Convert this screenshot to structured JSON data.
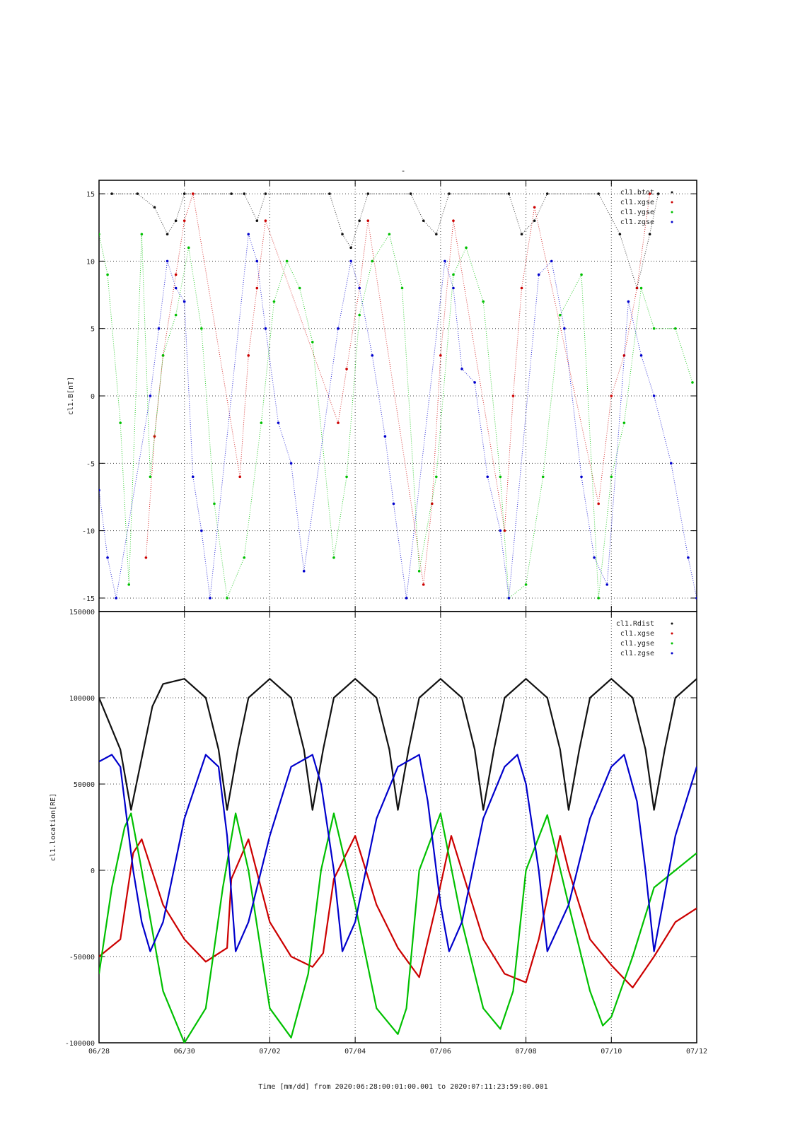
{
  "page_title": "-",
  "colors": {
    "black": "#111111",
    "red": "#cc0000",
    "green": "#00c000",
    "blue": "#0000cc",
    "grid": "#444444",
    "frame": "#000000"
  },
  "chart_data": [
    {
      "type": "scatter",
      "panel": "top",
      "title": "-",
      "ylabel": "cl1.B[nT]",
      "ylim": [
        -16,
        16
      ],
      "yticks": [
        -15,
        -10,
        -5,
        0,
        5,
        10,
        15
      ],
      "xlim": [
        "2020-06-28T00:01:00",
        "2020-07-11T23:59:00"
      ],
      "grid": true,
      "legend_placement": "top-right",
      "series": [
        {
          "name": "cl1.btot",
          "color": "#111111",
          "points": [
            [
              0.3,
              15.0
            ],
            [
              0.9,
              15.0
            ],
            [
              1.3,
              14.0
            ],
            [
              1.6,
              12.0
            ],
            [
              1.8,
              13.0
            ],
            [
              2.0,
              15.0
            ],
            [
              3.1,
              15.0
            ],
            [
              3.4,
              15.0
            ],
            [
              3.7,
              13.0
            ],
            [
              3.9,
              15.0
            ],
            [
              5.4,
              15.0
            ],
            [
              5.7,
              12.0
            ],
            [
              5.9,
              11.0
            ],
            [
              6.1,
              13.0
            ],
            [
              6.3,
              15.0
            ],
            [
              7.3,
              15.0
            ],
            [
              7.6,
              13.0
            ],
            [
              7.9,
              12.0
            ],
            [
              8.2,
              15.0
            ],
            [
              9.6,
              15.0
            ],
            [
              9.9,
              12.0
            ],
            [
              10.2,
              13.0
            ],
            [
              10.5,
              15.0
            ],
            [
              11.7,
              15.0
            ],
            [
              12.2,
              12.0
            ],
            [
              12.6,
              8.0
            ],
            [
              12.9,
              12.0
            ],
            [
              13.1,
              15.0
            ]
          ]
        },
        {
          "name": "cl1.xgse",
          "color": "#cc0000",
          "points": [
            [
              1.1,
              -12.0
            ],
            [
              1.3,
              -3.0
            ],
            [
              1.5,
              3.0
            ],
            [
              1.8,
              9.0
            ],
            [
              2.0,
              13.0
            ],
            [
              2.2,
              15.0
            ],
            [
              3.3,
              -6.0
            ],
            [
              3.5,
              3.0
            ],
            [
              3.7,
              8.0
            ],
            [
              3.9,
              13.0
            ],
            [
              5.6,
              -2.0
            ],
            [
              5.8,
              2.0
            ],
            [
              6.1,
              8.0
            ],
            [
              6.3,
              13.0
            ],
            [
              7.6,
              -14.0
            ],
            [
              7.8,
              -8.0
            ],
            [
              8.0,
              3.0
            ],
            [
              8.3,
              13.0
            ],
            [
              9.5,
              -10.0
            ],
            [
              9.7,
              0.0
            ],
            [
              9.9,
              8.0
            ],
            [
              10.2,
              14.0
            ],
            [
              11.7,
              -8.0
            ],
            [
              12.0,
              0.0
            ],
            [
              12.3,
              3.0
            ],
            [
              12.6,
              8.0
            ],
            [
              12.9,
              15.0
            ]
          ]
        },
        {
          "name": "cl1.ygse",
          "color": "#00c000",
          "points": [
            [
              0.0,
              12.0
            ],
            [
              0.2,
              9.0
            ],
            [
              0.5,
              -2.0
            ],
            [
              0.7,
              -14.0
            ],
            [
              1.0,
              12.0
            ],
            [
              1.2,
              -6.0
            ],
            [
              1.5,
              3.0
            ],
            [
              1.8,
              6.0
            ],
            [
              2.1,
              11.0
            ],
            [
              2.4,
              5.0
            ],
            [
              2.7,
              -8.0
            ],
            [
              3.0,
              -15.0
            ],
            [
              3.4,
              -12.0
            ],
            [
              3.8,
              -2.0
            ],
            [
              4.1,
              7.0
            ],
            [
              4.4,
              10.0
            ],
            [
              4.7,
              8.0
            ],
            [
              5.0,
              4.0
            ],
            [
              5.5,
              -12.0
            ],
            [
              5.8,
              -6.0
            ],
            [
              6.1,
              6.0
            ],
            [
              6.4,
              10.0
            ],
            [
              6.8,
              12.0
            ],
            [
              7.1,
              8.0
            ],
            [
              7.5,
              -13.0
            ],
            [
              7.9,
              -6.0
            ],
            [
              8.3,
              9.0
            ],
            [
              8.6,
              11.0
            ],
            [
              9.0,
              7.0
            ],
            [
              9.4,
              -6.0
            ],
            [
              9.6,
              -15.0
            ],
            [
              10.0,
              -14.0
            ],
            [
              10.4,
              -6.0
            ],
            [
              10.8,
              6.0
            ],
            [
              11.3,
              9.0
            ],
            [
              11.7,
              -15.0
            ],
            [
              12.0,
              -6.0
            ],
            [
              12.3,
              -2.0
            ],
            [
              12.7,
              8.0
            ],
            [
              13.0,
              5.0
            ],
            [
              13.5,
              5.0
            ],
            [
              13.9,
              1.0
            ]
          ]
        },
        {
          "name": "cl1.zgse",
          "color": "#0000cc",
          "points": [
            [
              0.0,
              -7.0
            ],
            [
              0.2,
              -12.0
            ],
            [
              0.4,
              -15.0
            ],
            [
              1.2,
              0.0
            ],
            [
              1.4,
              5.0
            ],
            [
              1.6,
              10.0
            ],
            [
              1.8,
              8.0
            ],
            [
              2.0,
              7.0
            ],
            [
              2.2,
              -6.0
            ],
            [
              2.4,
              -10.0
            ],
            [
              2.6,
              -15.0
            ],
            [
              3.5,
              12.0
            ],
            [
              3.7,
              10.0
            ],
            [
              3.9,
              5.0
            ],
            [
              4.2,
              -2.0
            ],
            [
              4.5,
              -5.0
            ],
            [
              4.8,
              -13.0
            ],
            [
              5.6,
              5.0
            ],
            [
              5.9,
              10.0
            ],
            [
              6.1,
              8.0
            ],
            [
              6.4,
              3.0
            ],
            [
              6.7,
              -3.0
            ],
            [
              6.9,
              -8.0
            ],
            [
              7.2,
              -15.0
            ],
            [
              8.1,
              10.0
            ],
            [
              8.3,
              8.0
            ],
            [
              8.5,
              2.0
            ],
            [
              8.8,
              1.0
            ],
            [
              9.1,
              -6.0
            ],
            [
              9.4,
              -10.0
            ],
            [
              9.6,
              -15.0
            ],
            [
              10.3,
              9.0
            ],
            [
              10.6,
              10.0
            ],
            [
              10.9,
              5.0
            ],
            [
              11.3,
              -6.0
            ],
            [
              11.6,
              -12.0
            ],
            [
              11.9,
              -14.0
            ],
            [
              12.4,
              7.0
            ],
            [
              12.7,
              3.0
            ],
            [
              13.0,
              0.0
            ],
            [
              13.4,
              -5.0
            ],
            [
              13.8,
              -12.0
            ],
            [
              14.0,
              -15.0
            ]
          ]
        }
      ]
    },
    {
      "type": "line",
      "panel": "bottom",
      "ylabel": "cl1.location[RE]",
      "xlabel": "Time [mm/dd]  from 2020:06:28:00:01:00.001  to  2020:07:11:23:59:00.001",
      "ylim": [
        -100000,
        150000
      ],
      "yticks": [
        -100000,
        -50000,
        0,
        50000,
        100000,
        150000
      ],
      "xticks": [
        "06/28",
        "06/30",
        "07/02",
        "07/04",
        "07/06",
        "07/08",
        "07/10",
        "07/12"
      ],
      "xtick_days": [
        0,
        2,
        4,
        6,
        8,
        10,
        12,
        14
      ],
      "grid": true,
      "legend_placement": "top-right",
      "series": [
        {
          "name": "cl1.Rdist",
          "color": "#111111",
          "x": [
            0.0,
            0.5,
            0.75,
            1.0,
            1.25,
            1.5,
            2.0,
            2.5,
            2.8,
            3.0,
            3.25,
            3.5,
            4.0,
            4.5,
            4.8,
            5.0,
            5.25,
            5.5,
            6.0,
            6.5,
            6.8,
            7.0,
            7.25,
            7.5,
            8.0,
            8.5,
            8.8,
            9.0,
            9.25,
            9.5,
            10.0,
            10.5,
            10.8,
            11.0,
            11.25,
            11.5,
            12.0,
            12.5,
            12.8,
            13.0,
            13.25,
            13.5,
            14.0
          ],
          "values": [
            100000,
            70000,
            35000,
            65000,
            95000,
            108000,
            111000,
            100000,
            70000,
            35000,
            70000,
            100000,
            111000,
            100000,
            70000,
            35000,
            70000,
            100000,
            111000,
            100000,
            70000,
            35000,
            70000,
            100000,
            111000,
            100000,
            70000,
            35000,
            70000,
            100000,
            111000,
            100000,
            70000,
            35000,
            70000,
            100000,
            111000,
            100000,
            70000,
            35000,
            70000,
            100000,
            111000
          ]
        },
        {
          "name": "cl1.xgse",
          "color": "#cc0000",
          "x": [
            0.0,
            0.5,
            0.8,
            1.0,
            1.5,
            2.0,
            2.5,
            3.0,
            3.1,
            3.5,
            4.0,
            4.5,
            5.0,
            5.25,
            5.5,
            6.0,
            6.5,
            7.0,
            7.5,
            7.9,
            8.25,
            8.5,
            9.0,
            9.5,
            10.0,
            10.3,
            10.8,
            11.0,
            11.5,
            12.0,
            12.5,
            13.0,
            13.5,
            14.0
          ],
          "values": [
            -50000,
            -40000,
            10000,
            18000,
            -20000,
            -40000,
            -53000,
            -45000,
            -5000,
            18000,
            -30000,
            -50000,
            -56000,
            -48000,
            -5000,
            20000,
            -20000,
            -45000,
            -62000,
            -20000,
            20000,
            0,
            -40000,
            -60000,
            -65000,
            -40000,
            20000,
            0,
            -40000,
            -55000,
            -68000,
            -50000,
            -30000,
            -22000
          ]
        },
        {
          "name": "cl1.ygse",
          "color": "#00c000",
          "x": [
            0.0,
            0.3,
            0.6,
            0.75,
            1.0,
            1.5,
            2.0,
            2.5,
            2.9,
            3.2,
            3.5,
            4.0,
            4.5,
            4.9,
            5.2,
            5.5,
            6.0,
            6.5,
            7.0,
            7.2,
            7.5,
            8.0,
            8.5,
            9.0,
            9.4,
            9.7,
            10.0,
            10.5,
            11.0,
            11.5,
            11.8,
            12.0,
            12.5,
            13.0,
            13.5,
            14.0
          ],
          "values": [
            -60000,
            -10000,
            25000,
            33000,
            0,
            -70000,
            -100000,
            -80000,
            -10000,
            33000,
            0,
            -80000,
            -97000,
            -60000,
            0,
            33000,
            -20000,
            -80000,
            -95000,
            -80000,
            0,
            33000,
            -30000,
            -80000,
            -92000,
            -70000,
            0,
            32000,
            -20000,
            -70000,
            -90000,
            -85000,
            -50000,
            -10000,
            0,
            10000
          ]
        },
        {
          "name": "cl1.zgse",
          "color": "#0000cc",
          "x": [
            0.0,
            0.3,
            0.5,
            0.8,
            1.0,
            1.2,
            1.5,
            2.0,
            2.5,
            2.8,
            3.0,
            3.2,
            3.5,
            4.0,
            4.5,
            5.0,
            5.2,
            5.5,
            5.7,
            6.0,
            6.5,
            7.0,
            7.5,
            7.7,
            8.0,
            8.2,
            8.5,
            9.0,
            9.5,
            9.8,
            10.0,
            10.3,
            10.5,
            11.0,
            11.5,
            12.0,
            12.3,
            12.6,
            12.8,
            13.0,
            13.5,
            14.0
          ],
          "values": [
            63000,
            67000,
            60000,
            0,
            -30000,
            -47000,
            -30000,
            30000,
            67000,
            60000,
            20000,
            -47000,
            -30000,
            20000,
            60000,
            67000,
            50000,
            0,
            -47000,
            -30000,
            30000,
            60000,
            67000,
            40000,
            -20000,
            -47000,
            -30000,
            30000,
            60000,
            67000,
            50000,
            0,
            -47000,
            -20000,
            30000,
            60000,
            67000,
            40000,
            0,
            -47000,
            20000,
            60000
          ]
        }
      ]
    }
  ]
}
